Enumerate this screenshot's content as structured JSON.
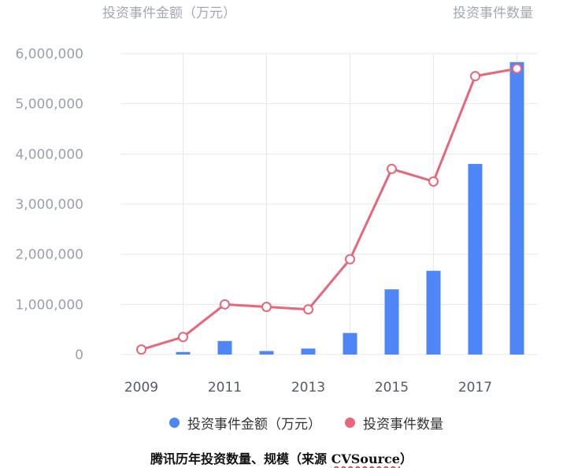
{
  "chart_data": {
    "type": "bar+line",
    "left_axis_title": "投资事件金额（万元）",
    "right_axis_title": "投资事件数量",
    "y_ticks": [
      "6,000,000",
      "5,000,000",
      "4,000,000",
      "3,000,000",
      "2,000,000",
      "1,000,000",
      "0"
    ],
    "ylim": [
      0,
      6000000
    ],
    "x_tick_labels": [
      "2009",
      "2011",
      "2013",
      "2015",
      "2017"
    ],
    "categories": [
      "2009",
      "2010",
      "2011",
      "2012",
      "2013",
      "2014",
      "2015",
      "2016",
      "2017",
      "2018"
    ],
    "series": [
      {
        "name": "投资事件金额（万元）",
        "type": "bar",
        "color": "#4f86f7",
        "values": [
          0,
          50000,
          270000,
          70000,
          120000,
          430000,
          1300000,
          1670000,
          3800000,
          5830000
        ]
      },
      {
        "name": "投资事件数量",
        "type": "line",
        "color": "#e8667a",
        "values_on_left_axis_scale": [
          100000,
          350000,
          1000000,
          950000,
          900000,
          1900000,
          3700000,
          3450000,
          5550000,
          5700000
        ]
      }
    ],
    "grid": true,
    "legend_position": "bottom"
  },
  "caption": {
    "main": "腾讯历年投资数量、规模（来源 ",
    "source": "CVSource",
    "close": "）"
  }
}
